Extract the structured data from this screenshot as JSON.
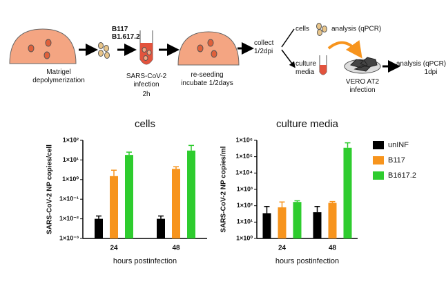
{
  "diagram": {
    "step1": [
      "Matrigel",
      "depolymerization"
    ],
    "variants": [
      "B117",
      "B1.617.2"
    ],
    "step2": [
      "SARS-CoV-2",
      "infection",
      "2h"
    ],
    "step3": [
      "re-seeding",
      "incubate 1/2days"
    ],
    "collect": [
      "collect",
      "1/2dpi"
    ],
    "cells": "cells",
    "cells_analysis": "analysis (qPCR)",
    "media": [
      "culture",
      "media"
    ],
    "vero": [
      "VERO AT2",
      "infection"
    ],
    "media_analysis": [
      "analysis (qPCR)",
      "1dpi"
    ]
  },
  "chart_data": [
    {
      "type": "bar",
      "title": "cells",
      "ylabel": "SARS-CoV-2 NP copies/cell",
      "xlabel": "hours postinfection",
      "categories": [
        "24",
        "48"
      ],
      "log": true,
      "ylim": [
        0.001,
        100
      ],
      "yticks": [
        {
          "value": 0.001,
          "label": "1×10⁻³"
        },
        {
          "value": 0.01,
          "label": "1×10⁻²"
        },
        {
          "value": 0.1,
          "label": "1×10⁻¹"
        },
        {
          "value": 1,
          "label": "1×10⁰"
        },
        {
          "value": 10,
          "label": "1×10¹"
        },
        {
          "value": 100,
          "label": "1×10²"
        }
      ],
      "series": [
        {
          "color": "#000000",
          "values": [
            0.01,
            0.01
          ],
          "errors": [
            0.004,
            0.004
          ]
        },
        {
          "color": "#f7941d",
          "values": [
            1.5,
            3.5
          ],
          "errors": [
            1.5,
            1
          ]
        },
        {
          "color": "#2ecc2e",
          "values": [
            18,
            30
          ],
          "errors": [
            7,
            25
          ]
        }
      ]
    },
    {
      "type": "bar",
      "title": "culture media",
      "ylabel": "SARS-CoV-2 NP copies/ml",
      "xlabel": "hours postinfection",
      "categories": [
        "24",
        "48"
      ],
      "log": true,
      "ylim": [
        1,
        1000000
      ],
      "yticks": [
        {
          "value": 1,
          "label": "1×10⁰"
        },
        {
          "value": 10,
          "label": "1×10¹"
        },
        {
          "value": 100,
          "label": "1×10²"
        },
        {
          "value": 1000,
          "label": "1×10³"
        },
        {
          "value": 10000,
          "label": "1×10⁴"
        },
        {
          "value": 100000,
          "label": "1×10⁵"
        },
        {
          "value": 1000000,
          "label": "1×10⁶"
        }
      ],
      "series": [
        {
          "name": "unINF",
          "color": "#000000",
          "values": [
            35,
            40
          ],
          "errors": [
            55,
            50
          ]
        },
        {
          "name": "B117",
          "color": "#f7941d",
          "values": [
            80,
            150
          ],
          "errors": [
            90,
            30
          ]
        },
        {
          "name": "B1617.2",
          "color": "#2ecc2e",
          "values": [
            170,
            350000
          ],
          "errors": [
            30,
            350000
          ]
        }
      ]
    }
  ]
}
